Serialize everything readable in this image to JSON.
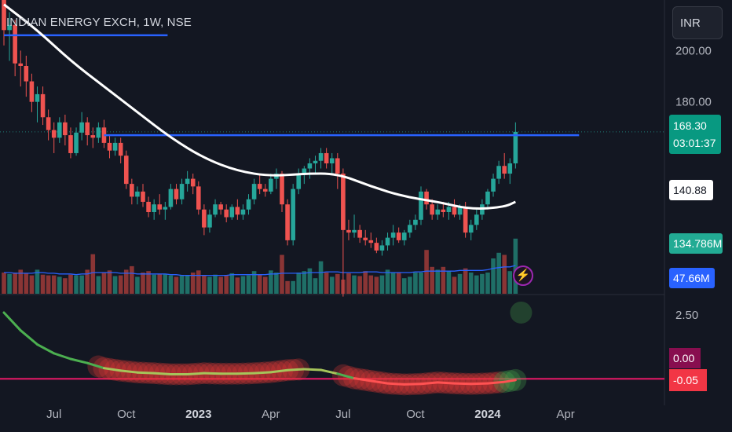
{
  "header": {
    "title": "INDIAN ENERGY EXCH, 1W, NSE",
    "currency": "INR"
  },
  "tags": {
    "price": "168.30",
    "countdown": "03:01:37",
    "ma": "140.88",
    "volume": "134.786M",
    "volume_ma": "47.66M",
    "osc_zero": "0.00",
    "osc_value": "-0.05"
  },
  "colors": {
    "background": "#131722",
    "up": "#26a69a",
    "down": "#ef5350",
    "ma": "#ffffff",
    "resistance": "#2962ff",
    "volume_ma": "#2962ff",
    "osc_line": "#4caf50",
    "osc_zero": "#c2185b"
  },
  "icons": {
    "alert": "lightning-icon"
  },
  "chart_data": [
    {
      "type": "candlestick",
      "title": "INDIAN ENERGY EXCH, 1W, NSE",
      "price_axis": {
        "ticks": [
          200.0,
          180.0
        ],
        "ylim": [
          118,
          232
        ]
      },
      "x_axis": {
        "ticks": [
          "Jul",
          "Oct",
          "2023",
          "Apr",
          "Jul",
          "Oct",
          "2024",
          "Apr"
        ]
      },
      "candles": [
        [
          220,
          222,
          202,
          208
        ],
        [
          208,
          215,
          196,
          210
        ],
        [
          210,
          212,
          190,
          195
        ],
        [
          195,
          200,
          186,
          194
        ],
        [
          194,
          198,
          182,
          188
        ],
        [
          188,
          191,
          176,
          180
        ],
        [
          180,
          186,
          172,
          183
        ],
        [
          183,
          186,
          171,
          174
        ],
        [
          174,
          177,
          165,
          169
        ],
        [
          169,
          172,
          160,
          166
        ],
        [
          166,
          174,
          164,
          172
        ],
        [
          172,
          175,
          163,
          167
        ],
        [
          167,
          170,
          158,
          160
        ],
        [
          160,
          170,
          159,
          168
        ],
        [
          168,
          176,
          165,
          172
        ],
        [
          172,
          174,
          163,
          167
        ],
        [
          167,
          170,
          162,
          166
        ],
        [
          166,
          172,
          164,
          170
        ],
        [
          170,
          173,
          162,
          164
        ],
        [
          164,
          167,
          158,
          161
        ],
        [
          161,
          166,
          159,
          164
        ],
        [
          164,
          166,
          156,
          159
        ],
        [
          159,
          161,
          146,
          148
        ],
        [
          148,
          150,
          140,
          143
        ],
        [
          143,
          147,
          140,
          145
        ],
        [
          145,
          148,
          139,
          141
        ],
        [
          141,
          143,
          135,
          137
        ],
        [
          137,
          142,
          134,
          140
        ],
        [
          140,
          144,
          136,
          138
        ],
        [
          138,
          141,
          134,
          139
        ],
        [
          139,
          148,
          138,
          146
        ],
        [
          146,
          148,
          140,
          142
        ],
        [
          142,
          150,
          140,
          148
        ],
        [
          148,
          153,
          145,
          150
        ],
        [
          150,
          152,
          144,
          147
        ],
        [
          147,
          149,
          136,
          138
        ],
        [
          138,
          140,
          128,
          131
        ],
        [
          131,
          138,
          129,
          136
        ],
        [
          136,
          142,
          135,
          140
        ],
        [
          140,
          141,
          136,
          138
        ],
        [
          138,
          140,
          133,
          135
        ],
        [
          135,
          140,
          134,
          139
        ],
        [
          139,
          142,
          134,
          136
        ],
        [
          136,
          140,
          134,
          138
        ],
        [
          138,
          144,
          136,
          142
        ],
        [
          142,
          150,
          140,
          148
        ],
        [
          148,
          152,
          144,
          146
        ],
        [
          146,
          148,
          143,
          145
        ],
        [
          145,
          152,
          144,
          150
        ],
        [
          150,
          154,
          146,
          152
        ],
        [
          152,
          153,
          137,
          140
        ],
        [
          140,
          142,
          124,
          126
        ],
        [
          126,
          148,
          124,
          146
        ],
        [
          146,
          154,
          144,
          152
        ],
        [
          152,
          155,
          148,
          154
        ],
        [
          154,
          158,
          150,
          156
        ],
        [
          156,
          159,
          152,
          157
        ],
        [
          157,
          162,
          154,
          160
        ],
        [
          160,
          162,
          154,
          156
        ],
        [
          156,
          160,
          152,
          158
        ],
        [
          158,
          160,
          146,
          152
        ],
        [
          152,
          154,
          104,
          130
        ],
        [
          130,
          134,
          126,
          129
        ],
        [
          129,
          136,
          127,
          130
        ],
        [
          130,
          132,
          125,
          127
        ],
        [
          127,
          130,
          124,
          126
        ],
        [
          126,
          129,
          123,
          125
        ],
        [
          125,
          127,
          121,
          122
        ],
        [
          122,
          126,
          120,
          124
        ],
        [
          124,
          129,
          122,
          127
        ],
        [
          127,
          132,
          124,
          129
        ],
        [
          129,
          131,
          125,
          126
        ],
        [
          126,
          130,
          124,
          129
        ],
        [
          129,
          134,
          127,
          132
        ],
        [
          132,
          136,
          130,
          134
        ],
        [
          134,
          147,
          132,
          145
        ],
        [
          145,
          146,
          138,
          140
        ],
        [
          140,
          142,
          134,
          136
        ],
        [
          136,
          140,
          134,
          138
        ],
        [
          138,
          141,
          135,
          137
        ],
        [
          137,
          141,
          134,
          139
        ],
        [
          139,
          142,
          135,
          136
        ],
        [
          136,
          140,
          134,
          139
        ],
        [
          139,
          141,
          127,
          129
        ],
        [
          129,
          134,
          126,
          132
        ],
        [
          132,
          138,
          130,
          136
        ],
        [
          136,
          142,
          134,
          140
        ],
        [
          140,
          146,
          138,
          145
        ],
        [
          145,
          152,
          143,
          150
        ],
        [
          150,
          157,
          148,
          155
        ],
        [
          155,
          160,
          150,
          152
        ],
        [
          152,
          158,
          148,
          156
        ],
        [
          156,
          172,
          154,
          168.3
        ]
      ],
      "moving_average": {
        "value_last": 140.88,
        "points": [
          [
            0,
            218
          ],
          [
            6,
            208
          ],
          [
            12,
            196
          ],
          [
            18,
            186
          ],
          [
            24,
            176
          ],
          [
            30,
            166
          ],
          [
            36,
            158
          ],
          [
            42,
            153
          ],
          [
            48,
            151
          ],
          [
            54,
            152
          ],
          [
            60,
            152
          ],
          [
            66,
            147
          ],
          [
            72,
            143
          ],
          [
            78,
            141
          ],
          [
            84,
            138
          ],
          [
            90,
            139
          ],
          [
            92,
            141
          ]
        ]
      },
      "resistance_lines": [
        {
          "from": 0,
          "to": 30,
          "value": 206
        },
        {
          "from": 18,
          "to": 104,
          "value": 167
        }
      ]
    },
    {
      "type": "bar",
      "name": "Volume",
      "value_last": "134.786M",
      "ma_last": "47.66M",
      "values": [
        30,
        28,
        30,
        34,
        29,
        26,
        34,
        27,
        26,
        26,
        24,
        22,
        27,
        26,
        26,
        34,
        56,
        25,
        30,
        33,
        25,
        26,
        34,
        39,
        24,
        30,
        32,
        27,
        28,
        28,
        26,
        24,
        26,
        26,
        30,
        33,
        26,
        24,
        27,
        24,
        26,
        29,
        23,
        25,
        26,
        32,
        27,
        24,
        33,
        30,
        55,
        18,
        18,
        30,
        32,
        36,
        22,
        46,
        30,
        24,
        28,
        20,
        29,
        26,
        25,
        32,
        26,
        24,
        26,
        34,
        30,
        30,
        22,
        24,
        30,
        30,
        62,
        38,
        34,
        38,
        32,
        24,
        28,
        36,
        30,
        26,
        28,
        30,
        50,
        58,
        55,
        32,
        78
      ],
      "ma_values": [
        30,
        30,
        29,
        29,
        29,
        29,
        30,
        30,
        29,
        29,
        28,
        28,
        28,
        27,
        28,
        28,
        30,
        30,
        30,
        30,
        30,
        29,
        29,
        29,
        28,
        28,
        28,
        28,
        28,
        28,
        27,
        27,
        26,
        26,
        26,
        26,
        26,
        26,
        26,
        26,
        26,
        27,
        27,
        27,
        27,
        27,
        27,
        27,
        28,
        28,
        29,
        29,
        29,
        29,
        29,
        30,
        30,
        30,
        31,
        31,
        31,
        30,
        30,
        30,
        30,
        31,
        31,
        31,
        30,
        30,
        30,
        30,
        30,
        30,
        31,
        31,
        32,
        32,
        32,
        32,
        32,
        32,
        33,
        33,
        33,
        33,
        33,
        34,
        36,
        37,
        38,
        38,
        40
      ]
    },
    {
      "type": "line",
      "name": "Oscillator",
      "y_axis": {
        "ticks": [
          2.5
        ],
        "ylim": [
          -0.7,
          3.0
        ]
      },
      "zero_line": 0.0,
      "value_last": -0.05,
      "points": [
        [
          0,
          2.6
        ],
        [
          3,
          1.9
        ],
        [
          6,
          1.35
        ],
        [
          9,
          1.0
        ],
        [
          12,
          0.78
        ],
        [
          15,
          0.62
        ],
        [
          18,
          0.42
        ],
        [
          21,
          0.32
        ],
        [
          24,
          0.25
        ],
        [
          27,
          0.22
        ],
        [
          30,
          0.18
        ],
        [
          33,
          0.18
        ],
        [
          36,
          0.22
        ],
        [
          39,
          0.2
        ],
        [
          42,
          0.2
        ],
        [
          45,
          0.22
        ],
        [
          48,
          0.26
        ],
        [
          51,
          0.34
        ],
        [
          54,
          0.38
        ],
        [
          57,
          0.35
        ],
        [
          60,
          0.2
        ],
        [
          63,
          0.02
        ],
        [
          66,
          -0.08
        ],
        [
          69,
          -0.18
        ],
        [
          72,
          -0.22
        ],
        [
          75,
          -0.2
        ],
        [
          78,
          -0.14
        ],
        [
          81,
          -0.18
        ],
        [
          84,
          -0.2
        ],
        [
          87,
          -0.18
        ],
        [
          90,
          -0.12
        ],
        [
          92,
          -0.05
        ]
      ],
      "bands": [
        {
          "from": 17,
          "to": 53,
          "color": "#e53935"
        },
        {
          "from": 61,
          "to": 89,
          "color": "#e53935"
        },
        {
          "from": 90,
          "to": 93,
          "color": "#4caf50"
        }
      ]
    }
  ]
}
